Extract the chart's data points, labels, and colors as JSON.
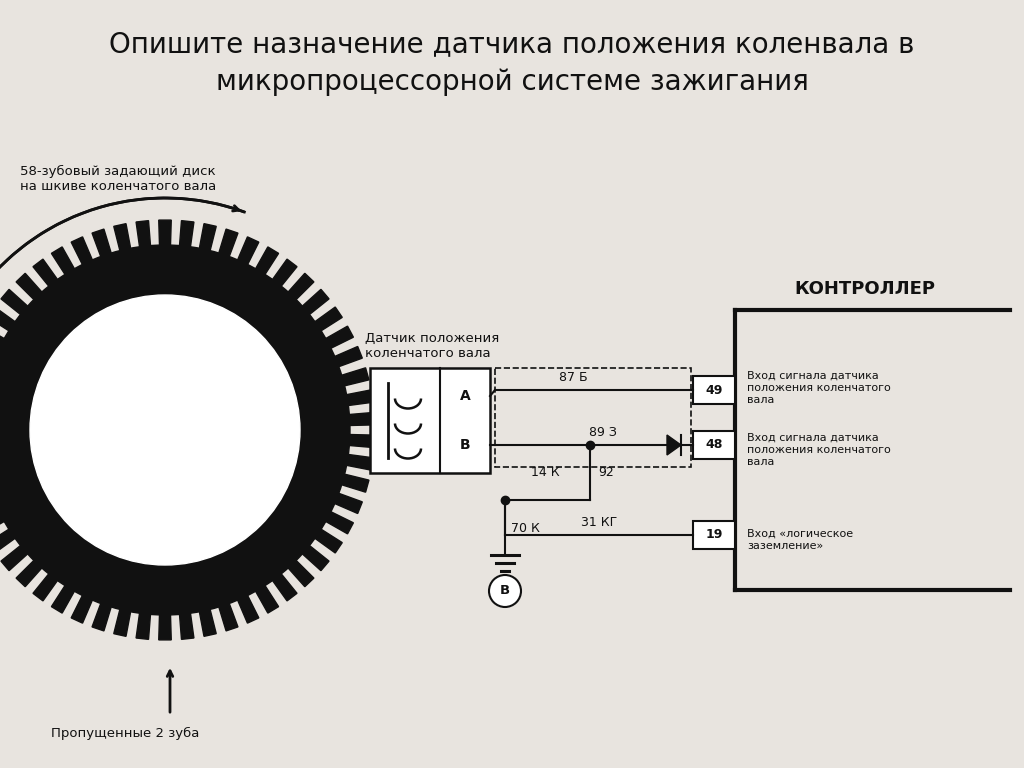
{
  "title_line1": "Опишите назначение датчика положения коленвала в",
  "title_line2": "микропроцессорной системе зажигания",
  "label_disk": "58-зубовый задающий диск\nна шкиве коленчатого вала",
  "label_missing": "Пропущенные 2 зуба",
  "label_sensor": "Датчик положения\nколенчатого вала",
  "label_controller": "КОНТРОЛЛЕР",
  "label_49": "49",
  "label_48": "48",
  "label_19": "19",
  "label_87b": "87 Б",
  "label_89z": "89 З",
  "label_14k": "14 К",
  "label_92": "92",
  "label_31kg": "31 КГ",
  "label_70k": "70 К",
  "label_A": "А",
  "label_B_box": "В",
  "label_B_circle": "В",
  "text_49": "Вход сигнала датчика\nположения коленчатого\nвала",
  "text_48": "Вход сигнала датчика\nположения коленчатого\nвала",
  "text_19": "Вход «логическое\nзаземление»",
  "bg_color": "#e8e4df",
  "line_color": "#111111",
  "title_fontsize": 20,
  "label_fontsize": 9.5,
  "small_fontsize": 8.5
}
